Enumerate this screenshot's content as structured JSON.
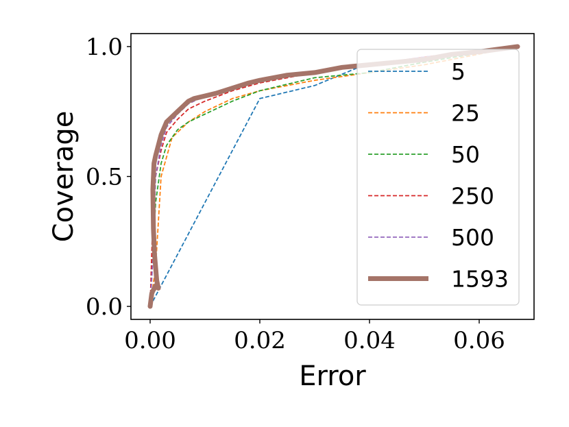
{
  "chart_data": {
    "type": "line",
    "xlabel": "Error",
    "ylabel": "Coverage",
    "xlim": [
      -0.0035,
      0.07
    ],
    "ylim": [
      -0.05,
      1.05
    ],
    "xticks": [
      0.0,
      0.02,
      0.04,
      0.06
    ],
    "xtick_labels": [
      "0.00",
      "0.02",
      "0.04",
      "0.06"
    ],
    "yticks": [
      0.0,
      0.5,
      1.0
    ],
    "ytick_labels": [
      "0.0",
      "0.5",
      "1.0"
    ],
    "grid": false,
    "legend_position": "right",
    "series": [
      {
        "name": "5",
        "color": "#1f77b4",
        "style": "dashed",
        "x": [
          0.0,
          0.02,
          0.03,
          0.038,
          0.05,
          0.067
        ],
        "y": [
          0.0,
          0.8,
          0.85,
          0.92,
          0.95,
          1.0
        ]
      },
      {
        "name": "25",
        "color": "#ff7f0e",
        "style": "dashed",
        "x": [
          0.0,
          0.001,
          0.002,
          0.004,
          0.007,
          0.01,
          0.015,
          0.02,
          0.03,
          0.04,
          0.05,
          0.067
        ],
        "y": [
          0.0,
          0.15,
          0.5,
          0.65,
          0.71,
          0.75,
          0.8,
          0.83,
          0.87,
          0.9,
          0.93,
          1.0
        ]
      },
      {
        "name": "50",
        "color": "#2ca02c",
        "style": "dashed",
        "x": [
          0.0,
          0.001,
          0.002,
          0.003,
          0.005,
          0.007,
          0.01,
          0.015,
          0.02,
          0.03,
          0.04,
          0.05,
          0.067
        ],
        "y": [
          0.0,
          0.4,
          0.55,
          0.62,
          0.68,
          0.71,
          0.74,
          0.79,
          0.83,
          0.88,
          0.9,
          0.94,
          1.0
        ]
      },
      {
        "name": "250",
        "color": "#d62728",
        "style": "dashed",
        "x": [
          0.0,
          0.0005,
          0.001,
          0.002,
          0.003,
          0.005,
          0.007,
          0.01,
          0.015,
          0.02,
          0.03,
          0.04,
          0.05,
          0.067
        ],
        "y": [
          0.0,
          0.35,
          0.5,
          0.6,
          0.67,
          0.72,
          0.76,
          0.79,
          0.83,
          0.86,
          0.9,
          0.93,
          0.96,
          1.0
        ]
      },
      {
        "name": "500",
        "color": "#9467bd",
        "style": "dashed",
        "x": [
          0.0,
          0.0005,
          0.001,
          0.002,
          0.003,
          0.005,
          0.007,
          0.01,
          0.015,
          0.02,
          0.03,
          0.04,
          0.05,
          0.067
        ],
        "y": [
          0.0,
          0.18,
          0.5,
          0.62,
          0.69,
          0.74,
          0.78,
          0.81,
          0.84,
          0.87,
          0.9,
          0.93,
          0.96,
          1.0
        ]
      },
      {
        "name": "1593",
        "color": "#a57468",
        "style": "solid",
        "x": [
          0.0,
          0.0003,
          0.0005,
          0.0008,
          0.001,
          0.0015,
          0.0012,
          0.0008,
          0.0006,
          0.0005,
          0.0007,
          0.001,
          0.0015,
          0.002,
          0.003,
          0.004,
          0.005,
          0.006,
          0.007,
          0.008,
          0.01,
          0.012,
          0.015,
          0.018,
          0.02,
          0.025,
          0.03,
          0.035,
          0.04,
          0.045,
          0.05,
          0.055,
          0.06,
          0.067
        ],
        "y": [
          0.0,
          0.05,
          0.06,
          0.07,
          0.08,
          0.07,
          0.1,
          0.2,
          0.3,
          0.45,
          0.55,
          0.58,
          0.62,
          0.66,
          0.71,
          0.73,
          0.75,
          0.77,
          0.79,
          0.8,
          0.81,
          0.82,
          0.84,
          0.86,
          0.87,
          0.89,
          0.9,
          0.92,
          0.93,
          0.94,
          0.95,
          0.97,
          0.98,
          1.0
        ]
      }
    ]
  }
}
